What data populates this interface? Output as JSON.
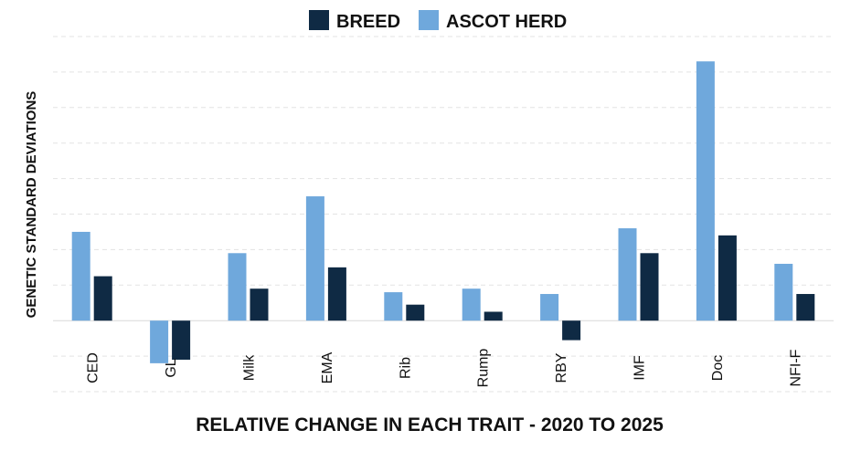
{
  "chart_data": {
    "type": "bar",
    "title": "",
    "xlabel": "RELATIVE CHANGE IN EACH TRAIT - 2020 TO 2025",
    "ylabel": "GENETIC STANDARD DEVIATIONS",
    "y_tick_labels_shown": false,
    "grid": true,
    "legend_position": "top-center",
    "ylim": [
      -2,
      8
    ],
    "categories": [
      "CED",
      "GL",
      "Milk",
      "EMA",
      "Rib",
      "Rump",
      "RBY",
      "IMF",
      "Doc",
      "NFI-F"
    ],
    "series": [
      {
        "name": "BREED",
        "color": "#0f2a44",
        "values": [
          1.25,
          -1.1,
          0.9,
          1.5,
          0.45,
          0.25,
          -0.55,
          1.9,
          2.4,
          0.75
        ]
      },
      {
        "name": "ASCOT HERD",
        "color": "#6fa8dc",
        "values": [
          2.5,
          -1.2,
          1.9,
          3.5,
          0.8,
          0.9,
          0.75,
          2.6,
          7.3,
          1.6
        ]
      }
    ]
  }
}
